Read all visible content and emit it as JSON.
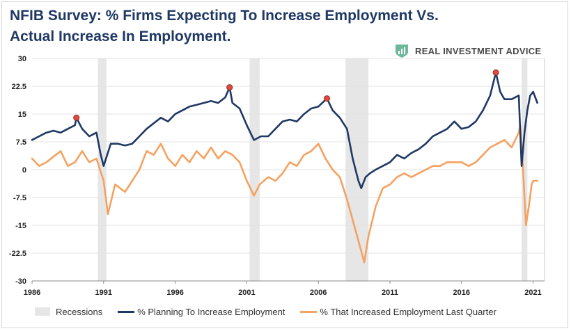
{
  "title_line1": "NFIB Survey:  % Firms Expecting To Increase Employment Vs.",
  "title_line2": "Actual Increase In Employment.",
  "brand": {
    "name": "REAL INVESTMENT ADVICE",
    "icon": "real-investment-advice-logo-icon",
    "icon_color": "#6db89a"
  },
  "chart_data": {
    "type": "line",
    "title": "NFIB Survey:  % Firms Expecting To Increase Employment Vs. Actual Increase In Employment.",
    "xlabel": "",
    "ylabel": "",
    "xlim": [
      1986,
      2021.8
    ],
    "ylim": [
      -30,
      30
    ],
    "y_ticks": [
      30,
      22.5,
      15,
      7.5,
      0,
      -7.5,
      -15,
      -22.5,
      -30
    ],
    "y_tick_labels": [
      "30",
      "22.5",
      "15",
      "7.5",
      "0",
      "-7.5",
      "-15",
      "-22.5",
      "-30"
    ],
    "x_ticks": [
      1986,
      1991,
      1996,
      2001,
      2006,
      2011,
      2016,
      2021
    ],
    "x_tick_labels": [
      "1986",
      "1991",
      "1996",
      "2001",
      "2006",
      "2011",
      "2016",
      "2021"
    ],
    "grid": "horizontal",
    "legend_position": "bottom",
    "recessions": [
      [
        1990.6,
        1991.2
      ],
      [
        2001.2,
        2001.9
      ],
      [
        2007.9,
        2009.5
      ],
      [
        2020.2,
        2020.6
      ]
    ],
    "peaks": [
      {
        "x": 1989.1,
        "y": 14
      },
      {
        "x": 1999.8,
        "y": 22.2
      },
      {
        "x": 2006.6,
        "y": 19.2
      },
      {
        "x": 2018.4,
        "y": 26.2
      }
    ],
    "series": [
      {
        "name": "% Planning To Increase Employment",
        "color": "#1f3864",
        "x": [
          1986,
          1986.5,
          1987,
          1987.5,
          1988,
          1988.5,
          1989,
          1989.1,
          1989.5,
          1990,
          1990.5,
          1990.8,
          1991,
          1991.5,
          1992,
          1992.5,
          1993,
          1993.5,
          1994,
          1994.5,
          1995,
          1995.5,
          1996,
          1996.5,
          1997,
          1997.5,
          1998,
          1998.5,
          1999,
          1999.5,
          1999.8,
          2000,
          2000.5,
          2001,
          2001.5,
          2002,
          2002.5,
          2003,
          2003.5,
          2004,
          2004.5,
          2005,
          2005.5,
          2006,
          2006.6,
          2007,
          2007.5,
          2008,
          2008.4,
          2008.8,
          2009,
          2009.3,
          2009.6,
          2010,
          2010.5,
          2011,
          2011.5,
          2012,
          2012.5,
          2013,
          2013.5,
          2014,
          2014.5,
          2015,
          2015.5,
          2016,
          2016.5,
          2017,
          2017.5,
          2018,
          2018.4,
          2018.7,
          2019,
          2019.5,
          2020,
          2020.2,
          2020.4,
          2020.6,
          2020.8,
          2021,
          2021.3
        ],
        "y": [
          8,
          9,
          10,
          10.5,
          10,
          11,
          12,
          14,
          11,
          9,
          10,
          4,
          1,
          7,
          7,
          6.5,
          7,
          9,
          11,
          12.5,
          14,
          13,
          15,
          16,
          17,
          17.5,
          18,
          18.5,
          18,
          19.5,
          22.2,
          18,
          16.5,
          12,
          8,
          9,
          9,
          11,
          13,
          13.5,
          13,
          15,
          16.5,
          17,
          19.2,
          16,
          14,
          11,
          3,
          -3,
          -5,
          -2,
          -1,
          0,
          1,
          2,
          4,
          3,
          4.5,
          5.5,
          7,
          9,
          10,
          11,
          13,
          11,
          11.5,
          13,
          16,
          20,
          26.2,
          21,
          19,
          19,
          20,
          1,
          10,
          16,
          20,
          21,
          18
        ]
      },
      {
        "name": "% That Increased Employment Last Quarter",
        "color": "#f4a261",
        "x": [
          1986,
          1986.5,
          1987,
          1987.5,
          1988,
          1988.5,
          1989,
          1989.5,
          1990,
          1990.5,
          1991,
          1991.3,
          1991.8,
          1992.5,
          1993,
          1993.5,
          1994,
          1994.5,
          1995,
          1995.5,
          1996,
          1996.5,
          1997,
          1997.5,
          1998,
          1998.5,
          1999,
          1999.5,
          2000,
          2000.5,
          2001,
          2001.5,
          2001.9,
          2002.5,
          2003,
          2003.5,
          2004,
          2004.5,
          2005,
          2005.5,
          2006,
          2006.5,
          2007,
          2007.5,
          2008,
          2008.5,
          2009,
          2009.2,
          2009.5,
          2010,
          2010.5,
          2011,
          2011.5,
          2012,
          2012.5,
          2013,
          2013.5,
          2014,
          2014.5,
          2015,
          2015.5,
          2016,
          2016.5,
          2017,
          2017.5,
          2018,
          2018.5,
          2019,
          2019.5,
          2020,
          2020.1,
          2020.3,
          2020.5,
          2020.7,
          2020.9,
          2021,
          2021.3
        ],
        "y": [
          3,
          1,
          2,
          3.5,
          5,
          1,
          2,
          5,
          2,
          3,
          -3,
          -12,
          -4,
          -6,
          -3,
          0,
          5,
          4,
          7,
          3,
          1,
          4,
          2,
          5,
          3,
          6,
          3,
          5,
          4,
          2,
          -3,
          -7,
          -4,
          -2,
          -3,
          -1,
          2,
          1,
          4,
          5,
          7,
          3,
          0,
          -2,
          -8,
          -15,
          -22,
          -25,
          -18,
          -10,
          -5,
          -4,
          -2,
          -1,
          -2,
          -1,
          0,
          1,
          1,
          2,
          2,
          2,
          1,
          2,
          4,
          6,
          7,
          8,
          6,
          10,
          12,
          0,
          -15,
          -10,
          -4,
          -3,
          -3
        ]
      }
    ]
  },
  "legend": {
    "recessions": "Recessions",
    "series1": "% Planning To Increase Employment",
    "series2": "% That Increased Employment Last Quarter"
  }
}
